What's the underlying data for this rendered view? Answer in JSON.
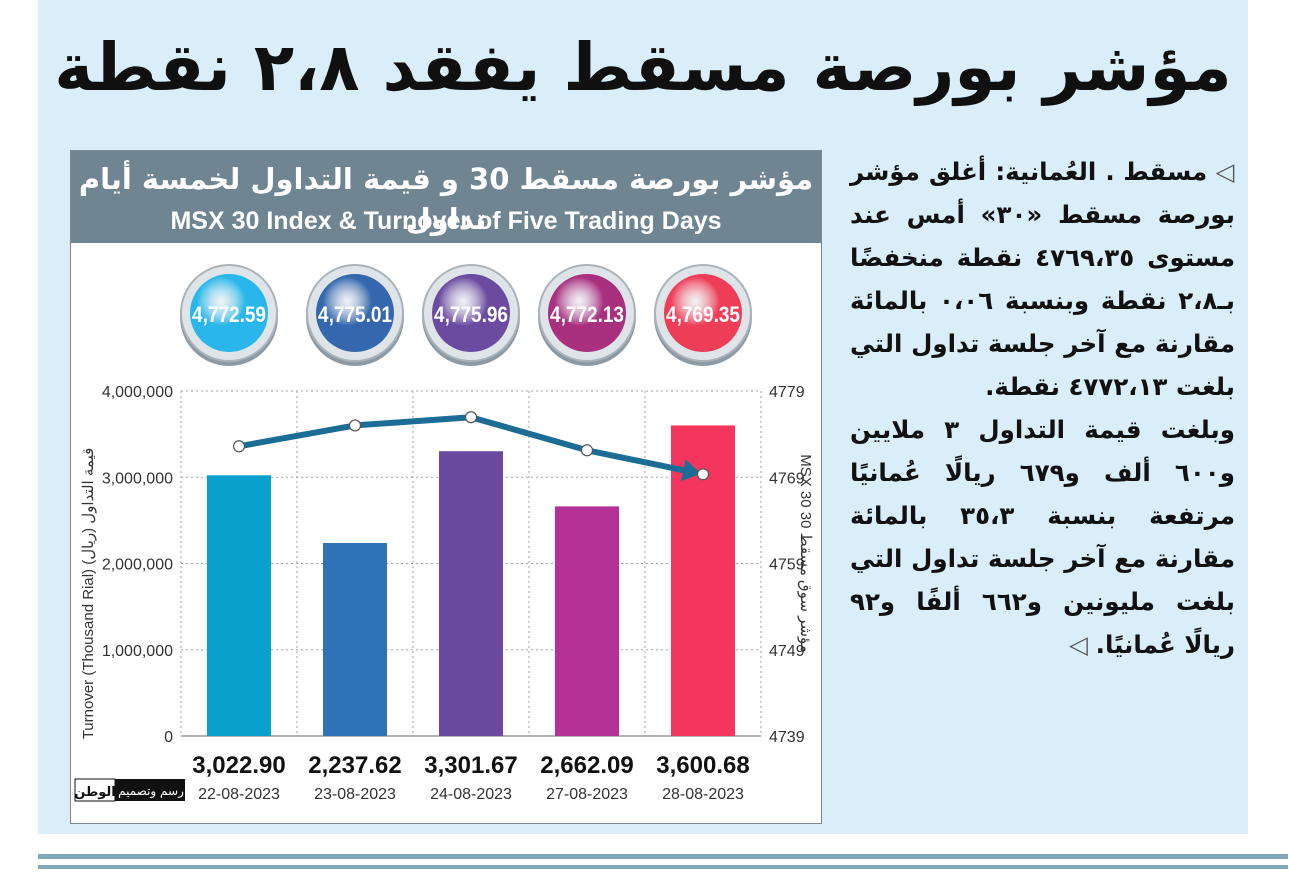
{
  "headline": "مؤشر بورصة مسقط يفقد ٢،٨ نقطة",
  "article": {
    "p1": "مسقط . العُمانية: أغلق مؤشر بورصة مسقط «٣٠» أمس عند مستوى ٤٧٦٩،٣٥ نقطة منخفضًا بـ٢،٨ نقطة وبنسبة ٠،٠٦ بالمائة مقارنة مع آخر جلسة تداول التي بلغت ٤٧٧٢،١٣ نقطة.",
    "p2": "وبلغت قيمة التداول ٣ ملايين و٦٠٠ ألف و٦٧٩ ريالًا عُمانيًا مرتفعة بنسبة ٣٥،٣ بالمائة مقارنة مع آخر جلسة تداول التي بلغت مليونين و٦٦٢ ألفًا و٩٢ ريالًا عُمانيًا."
  },
  "chart_data": {
    "type": "bar",
    "title": "مؤشر بورصة مسقط 30 و قيمة التداول لخمسة أيام تداول",
    "subtitle": "MSX 30 Index & Turnover of Five Trading Days",
    "categories": [
      "22-08-2023",
      "23-08-2023",
      "24-08-2023",
      "27-08-2023",
      "28-08-2023"
    ],
    "bar_labels": [
      "3,022.90",
      "2,237.62",
      "3,301.67",
      "2,662.09",
      "3,600.68"
    ],
    "bar_values": [
      3022900,
      2237620,
      3301670,
      2662090,
      3600679
    ],
    "bar_colors": [
      "#0aa0cc",
      "#2f73b7",
      "#6a4a9e",
      "#b43195",
      "#f4365f"
    ],
    "ylabel_left": "Turnover (Thousand Rial)   قيمة التداول (ريال)",
    "ylabel_right": "MSX 30   مؤشر سوق مسقط 30",
    "left_ticks": [
      "0",
      "1,000,000",
      "2,000,000",
      "3,000,000",
      "4,000,000"
    ],
    "left_ylim": [
      0,
      4000000
    ],
    "right_ticks": [
      "4739",
      "4749",
      "4759",
      "4769",
      "4779"
    ],
    "right_ylim": [
      4739,
      4779
    ],
    "index_labels": [
      "4,772.59",
      "4,775.01",
      "4,775.96",
      "4,772.13",
      "4,769.35"
    ],
    "index_values": [
      4772.59,
      4775.01,
      4775.96,
      4772.13,
      4769.35
    ],
    "line_color": "#1b6d96",
    "grid": "dotted vertical and horizontal",
    "credit": {
      "brand": "الوطن",
      "text": "رسم وتصميم"
    }
  }
}
